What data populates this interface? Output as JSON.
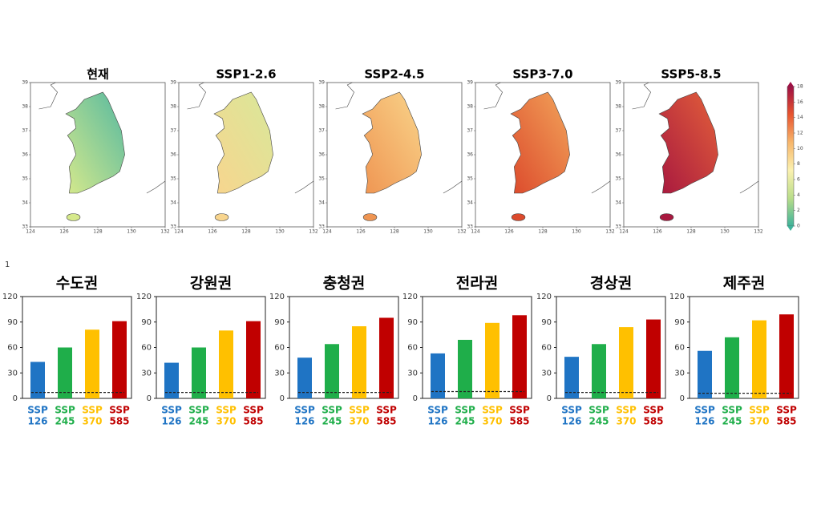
{
  "page_mark": "1",
  "maps": {
    "xticks": [
      124,
      126,
      128,
      130,
      132
    ],
    "yticks": [
      33,
      34,
      35,
      36,
      37,
      38,
      39
    ],
    "colorbar": {
      "ticks": [
        0,
        2,
        4,
        6,
        8,
        10,
        12,
        14,
        16,
        18
      ],
      "colors": [
        "#3fb39a",
        "#b9dd8a",
        "#fbf1b0",
        "#f7b66b",
        "#e7542f",
        "#9e1044"
      ]
    },
    "panels": [
      {
        "title": "현재",
        "colors": [
          "#56b9a0",
          "#d6e98c"
        ]
      },
      {
        "title": "SSP1-2.6",
        "colors": [
          "#d8e89a",
          "#f8d58e"
        ]
      },
      {
        "title": "SSP2-4.5",
        "colors": [
          "#f9d48a",
          "#ef9552"
        ]
      },
      {
        "title": "SSP3-7.0",
        "colors": [
          "#f2a45a",
          "#dc4a2c"
        ]
      },
      {
        "title": "SSP5-8.5",
        "colors": [
          "#e3603a",
          "#a8183f"
        ]
      }
    ]
  },
  "chart_data": [
    {
      "type": "bar",
      "title": "수도권",
      "categories": [
        [
          "SSP",
          "126"
        ],
        [
          "SSP",
          "245"
        ],
        [
          "SSP",
          "370"
        ],
        [
          "SSP",
          "585"
        ]
      ],
      "values": [
        43,
        60,
        81,
        91
      ],
      "reference": 7,
      "colors": [
        "#1f74c4",
        "#1fae4a",
        "#ffc000",
        "#c00000"
      ],
      "ylim": [
        0,
        120
      ],
      "yticks": [
        0,
        30,
        60,
        90,
        120
      ]
    },
    {
      "type": "bar",
      "title": "강원권",
      "categories": [
        [
          "SSP",
          "126"
        ],
        [
          "SSP",
          "245"
        ],
        [
          "SSP",
          "370"
        ],
        [
          "SSP",
          "585"
        ]
      ],
      "values": [
        42,
        60,
        80,
        91
      ],
      "reference": 7,
      "colors": [
        "#1f74c4",
        "#1fae4a",
        "#ffc000",
        "#c00000"
      ],
      "ylim": [
        0,
        120
      ],
      "yticks": [
        0,
        30,
        60,
        90,
        120
      ]
    },
    {
      "type": "bar",
      "title": "충청권",
      "categories": [
        [
          "SSP",
          "126"
        ],
        [
          "SSP",
          "245"
        ],
        [
          "SSP",
          "370"
        ],
        [
          "SSP",
          "585"
        ]
      ],
      "values": [
        48,
        64,
        85,
        95
      ],
      "reference": 7,
      "colors": [
        "#1f74c4",
        "#1fae4a",
        "#ffc000",
        "#c00000"
      ],
      "ylim": [
        0,
        120
      ],
      "yticks": [
        0,
        30,
        60,
        90,
        120
      ]
    },
    {
      "type": "bar",
      "title": "전라권",
      "categories": [
        [
          "SSP",
          "126"
        ],
        [
          "SSP",
          "245"
        ],
        [
          "SSP",
          "370"
        ],
        [
          "SSP",
          "585"
        ]
      ],
      "values": [
        53,
        69,
        89,
        98
      ],
      "reference": 8,
      "colors": [
        "#1f74c4",
        "#1fae4a",
        "#ffc000",
        "#c00000"
      ],
      "ylim": [
        0,
        120
      ],
      "yticks": [
        0,
        30,
        60,
        90,
        120
      ]
    },
    {
      "type": "bar",
      "title": "경상권",
      "categories": [
        [
          "SSP",
          "126"
        ],
        [
          "SSP",
          "245"
        ],
        [
          "SSP",
          "370"
        ],
        [
          "SSP",
          "585"
        ]
      ],
      "values": [
        49,
        64,
        84,
        93
      ],
      "reference": 7,
      "colors": [
        "#1f74c4",
        "#1fae4a",
        "#ffc000",
        "#c00000"
      ],
      "ylim": [
        0,
        120
      ],
      "yticks": [
        0,
        30,
        60,
        90,
        120
      ]
    },
    {
      "type": "bar",
      "title": "제주권",
      "categories": [
        [
          "SSP",
          "126"
        ],
        [
          "SSP",
          "245"
        ],
        [
          "SSP",
          "370"
        ],
        [
          "SSP",
          "585"
        ]
      ],
      "values": [
        56,
        72,
        92,
        99
      ],
      "reference": 6,
      "colors": [
        "#1f74c4",
        "#1fae4a",
        "#ffc000",
        "#c00000"
      ],
      "ylim": [
        0,
        120
      ],
      "yticks": [
        0,
        30,
        60,
        90,
        120
      ]
    }
  ]
}
